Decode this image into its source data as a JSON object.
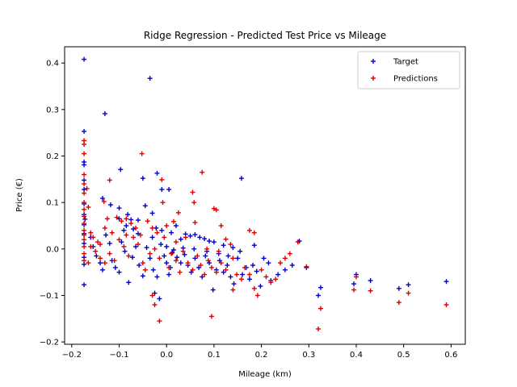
{
  "chart_data": {
    "type": "scatter",
    "title": "Ridge Regression - Predicted Test Price vs Mileage",
    "xlabel": "Mileage (km)",
    "ylabel": "Price (€)",
    "xlim": [
      -0.215,
      0.63
    ],
    "ylim": [
      -0.205,
      0.435
    ],
    "xticks": [
      -0.2,
      -0.1,
      0.0,
      0.1,
      0.2,
      0.3,
      0.4,
      0.5,
      0.6
    ],
    "xtick_labels": [
      "−0.2",
      "−0.1",
      "0.0",
      "0.1",
      "0.2",
      "0.3",
      "0.4",
      "0.5",
      "0.6"
    ],
    "yticks": [
      -0.2,
      -0.1,
      0.0,
      0.1,
      0.2,
      0.3,
      0.4
    ],
    "ytick_labels": [
      "−0.2",
      "−0.1",
      "0.0",
      "0.1",
      "0.2",
      "0.3",
      "0.4"
    ],
    "grid": false,
    "legend": "top-right",
    "series": [
      {
        "name": "Target",
        "color": "#0000cc",
        "marker": "plus",
        "points": [
          [
            -0.174,
            0.408
          ],
          [
            -0.174,
            0.253
          ],
          [
            -0.174,
            0.187
          ],
          [
            -0.174,
            0.181
          ],
          [
            -0.174,
            0.148
          ],
          [
            -0.174,
            0.128
          ],
          [
            -0.174,
            0.097
          ],
          [
            -0.174,
            0.074
          ],
          [
            -0.174,
            0.052
          ],
          [
            -0.174,
            0.033
          ],
          [
            -0.174,
            0.012
          ],
          [
            -0.174,
            -0.018
          ],
          [
            -0.174,
            -0.033
          ],
          [
            -0.174,
            -0.077
          ],
          [
            -0.172,
            0.064
          ],
          [
            -0.13,
            0.291
          ],
          [
            -0.035,
            0.367
          ],
          [
            -0.097,
            0.171
          ],
          [
            -0.05,
            0.152
          ],
          [
            -0.02,
            0.163
          ],
          [
            -0.01,
            0.128
          ],
          [
            0.005,
            0.128
          ],
          [
            0.158,
            0.152
          ],
          [
            -0.135,
            0.109
          ],
          [
            -0.118,
            0.095
          ],
          [
            -0.1,
            0.088
          ],
          [
            -0.082,
            0.074
          ],
          [
            -0.075,
            0.063
          ],
          [
            -0.06,
            0.062
          ],
          [
            -0.045,
            0.093
          ],
          [
            -0.03,
            0.077
          ],
          [
            -0.022,
            0.045
          ],
          [
            -0.01,
            0.04
          ],
          [
            0.01,
            0.035
          ],
          [
            0.02,
            0.05
          ],
          [
            0.03,
            0.021
          ],
          [
            0.04,
            0.032
          ],
          [
            0.05,
            0.028
          ],
          [
            0.06,
            0.031
          ],
          [
            0.07,
            0.025
          ],
          [
            0.08,
            0.022
          ],
          [
            0.09,
            0.017
          ],
          [
            0.1,
            0.015
          ],
          [
            0.12,
            0.008
          ],
          [
            0.14,
            0.003
          ],
          [
            0.155,
            -0.005
          ],
          [
            -0.16,
            0.025
          ],
          [
            -0.155,
            0.005
          ],
          [
            -0.148,
            -0.015
          ],
          [
            -0.14,
            -0.03
          ],
          [
            -0.135,
            -0.045
          ],
          [
            -0.128,
            0.03
          ],
          [
            -0.12,
            0.012
          ],
          [
            -0.115,
            -0.025
          ],
          [
            -0.108,
            -0.04
          ],
          [
            -0.1,
            -0.05
          ],
          [
            -0.095,
            0.015
          ],
          [
            -0.088,
            -0.005
          ],
          [
            -0.08,
            -0.072
          ],
          [
            -0.072,
            -0.018
          ],
          [
            -0.065,
            0.005
          ],
          [
            -0.058,
            -0.035
          ],
          [
            -0.05,
            -0.058
          ],
          [
            -0.042,
            0.003
          ],
          [
            -0.035,
            -0.02
          ],
          [
            -0.028,
            -0.045
          ],
          [
            -0.02,
            -0.06
          ],
          [
            -0.012,
            0.01
          ],
          [
            -0.005,
            -0.015
          ],
          [
            0.0,
            -0.03
          ],
          [
            0.008,
            -0.04
          ],
          [
            0.015,
            -0.002
          ],
          [
            0.022,
            -0.018
          ],
          [
            0.03,
            -0.03
          ],
          [
            0.038,
            -0.012
          ],
          [
            0.045,
            -0.035
          ],
          [
            0.052,
            -0.05
          ],
          [
            0.06,
            -0.02
          ],
          [
            0.068,
            -0.04
          ],
          [
            0.075,
            -0.06
          ],
          [
            0.082,
            -0.015
          ],
          [
            0.09,
            -0.03
          ],
          [
            0.098,
            -0.088
          ],
          [
            0.105,
            -0.045
          ],
          [
            0.112,
            -0.025
          ],
          [
            0.12,
            -0.05
          ],
          [
            0.128,
            -0.035
          ],
          [
            0.135,
            -0.06
          ],
          [
            0.142,
            -0.075
          ],
          [
            0.15,
            -0.02
          ],
          [
            0.16,
            -0.055
          ],
          [
            0.168,
            -0.04
          ],
          [
            0.175,
            -0.065
          ],
          [
            0.182,
            -0.035
          ],
          [
            0.19,
            -0.048
          ],
          [
            0.198,
            -0.08
          ],
          [
            0.205,
            -0.02
          ],
          [
            0.215,
            -0.03
          ],
          [
            0.22,
            -0.068
          ],
          [
            0.235,
            -0.055
          ],
          [
            0.25,
            -0.045
          ],
          [
            0.265,
            -0.035
          ],
          [
            0.28,
            0.017
          ],
          [
            0.295,
            -0.04
          ],
          [
            0.32,
            -0.1
          ],
          [
            0.325,
            -0.083
          ],
          [
            0.395,
            -0.075
          ],
          [
            0.4,
            -0.055
          ],
          [
            0.43,
            -0.068
          ],
          [
            0.49,
            -0.085
          ],
          [
            0.51,
            -0.077
          ],
          [
            0.59,
            -0.07
          ],
          [
            -0.1,
            0.065
          ],
          [
            -0.09,
            0.04
          ],
          [
            -0.085,
            0.05
          ],
          [
            -0.07,
            0.043
          ],
          [
            -0.06,
            0.033
          ],
          [
            -0.03,
            0.025
          ],
          [
            0.0,
            0.005
          ],
          [
            0.012,
            -0.008
          ],
          [
            0.035,
            0.002
          ],
          [
            0.058,
            0.0
          ],
          [
            0.085,
            -0.005
          ],
          [
            0.11,
            -0.01
          ],
          [
            0.13,
            -0.015
          ],
          [
            0.185,
            0.008
          ],
          [
            -0.015,
            -0.107
          ],
          [
            -0.025,
            -0.095
          ],
          [
            0.005,
            -0.055
          ]
        ]
      },
      {
        "name": "Predictions",
        "color": "#dd0000",
        "marker": "plus",
        "points": [
          [
            -0.174,
            0.233
          ],
          [
            -0.174,
            0.225
          ],
          [
            -0.174,
            0.205
          ],
          [
            -0.174,
            0.16
          ],
          [
            -0.174,
            0.14
          ],
          [
            -0.174,
            0.12
          ],
          [
            -0.174,
            0.1
          ],
          [
            -0.174,
            0.085
          ],
          [
            -0.174,
            0.07
          ],
          [
            -0.174,
            0.055
          ],
          [
            -0.174,
            0.04
          ],
          [
            -0.174,
            0.03
          ],
          [
            -0.174,
            0.02
          ],
          [
            -0.174,
            0.005
          ],
          [
            -0.174,
            -0.01
          ],
          [
            -0.174,
            -0.025
          ],
          [
            -0.168,
            0.13
          ],
          [
            -0.165,
            0.09
          ],
          [
            -0.16,
            0.035
          ],
          [
            -0.155,
            0.025
          ],
          [
            -0.145,
            0.015
          ],
          [
            -0.14,
            0.01
          ],
          [
            -0.132,
            0.102
          ],
          [
            -0.12,
            0.148
          ],
          [
            -0.105,
            0.068
          ],
          [
            -0.095,
            0.06
          ],
          [
            -0.085,
            0.065
          ],
          [
            -0.075,
            0.055
          ],
          [
            -0.052,
            0.205
          ],
          [
            -0.04,
            0.06
          ],
          [
            -0.03,
            0.045
          ],
          [
            -0.01,
            0.149
          ],
          [
            -0.008,
            0.1
          ],
          [
            0.015,
            0.059
          ],
          [
            0.025,
            0.078
          ],
          [
            0.055,
            0.122
          ],
          [
            0.058,
            0.1
          ],
          [
            0.075,
            0.165
          ],
          [
            0.06,
            0.057
          ],
          [
            0.1,
            0.087
          ],
          [
            0.105,
            0.084
          ],
          [
            0.115,
            0.05
          ],
          [
            0.125,
            0.021
          ],
          [
            0.135,
            0.01
          ],
          [
            0.175,
            0.04
          ],
          [
            0.185,
            0.035
          ],
          [
            -0.15,
            -0.005
          ],
          [
            -0.14,
            -0.02
          ],
          [
            -0.13,
            -0.03
          ],
          [
            -0.12,
            -0.01
          ],
          [
            -0.11,
            -0.025
          ],
          [
            -0.1,
            0.02
          ],
          [
            -0.09,
            0.005
          ],
          [
            -0.08,
            -0.015
          ],
          [
            -0.07,
            0.025
          ],
          [
            -0.06,
            0.01
          ],
          [
            -0.05,
            -0.03
          ],
          [
            -0.045,
            -0.045
          ],
          [
            -0.035,
            -0.01
          ],
          [
            -0.025,
            0.0
          ],
          [
            -0.015,
            -0.02
          ],
          [
            -0.005,
            0.025
          ],
          [
            0.005,
            -0.04
          ],
          [
            0.01,
            -0.01
          ],
          [
            0.02,
            -0.025
          ],
          [
            0.028,
            -0.05
          ],
          [
            0.035,
            -0.005
          ],
          [
            0.045,
            -0.03
          ],
          [
            0.055,
            -0.045
          ],
          [
            0.065,
            -0.015
          ],
          [
            0.072,
            -0.035
          ],
          [
            0.08,
            -0.055
          ],
          [
            0.088,
            -0.025
          ],
          [
            0.095,
            -0.04
          ],
          [
            0.105,
            -0.05
          ],
          [
            0.115,
            -0.03
          ],
          [
            0.125,
            -0.045
          ],
          [
            0.14,
            -0.02
          ],
          [
            0.148,
            -0.055
          ],
          [
            0.158,
            -0.065
          ],
          [
            0.165,
            -0.04
          ],
          [
            0.175,
            -0.055
          ],
          [
            0.185,
            -0.085
          ],
          [
            0.192,
            -0.1
          ],
          [
            0.2,
            -0.045
          ],
          [
            0.21,
            -0.06
          ],
          [
            0.22,
            -0.072
          ],
          [
            0.23,
            -0.065
          ],
          [
            0.24,
            -0.03
          ],
          [
            0.25,
            -0.02
          ],
          [
            0.26,
            -0.01
          ],
          [
            0.277,
            0.015
          ],
          [
            0.295,
            -0.038
          ],
          [
            0.32,
            -0.172
          ],
          [
            0.325,
            -0.128
          ],
          [
            0.395,
            -0.088
          ],
          [
            0.4,
            -0.06
          ],
          [
            0.43,
            -0.09
          ],
          [
            0.49,
            -0.115
          ],
          [
            0.51,
            -0.095
          ],
          [
            0.59,
            -0.12
          ],
          [
            -0.03,
            -0.1
          ],
          [
            -0.025,
            -0.12
          ],
          [
            -0.015,
            -0.155
          ],
          [
            0.095,
            -0.145
          ],
          [
            0.14,
            -0.088
          ],
          [
            -0.13,
            0.045
          ],
          [
            -0.125,
            0.065
          ],
          [
            -0.115,
            0.035
          ],
          [
            -0.065,
            0.045
          ],
          [
            -0.055,
            0.03
          ],
          [
            -0.02,
            0.035
          ],
          [
            0.0,
            0.05
          ],
          [
            0.04,
            0.025
          ],
          [
            0.085,
            0.0
          ],
          [
            0.11,
            -0.005
          ],
          [
            0.02,
            0.015
          ],
          [
            -0.085,
            0.03
          ],
          [
            -0.16,
            0.005
          ],
          [
            -0.165,
            -0.03
          ]
        ]
      }
    ]
  }
}
